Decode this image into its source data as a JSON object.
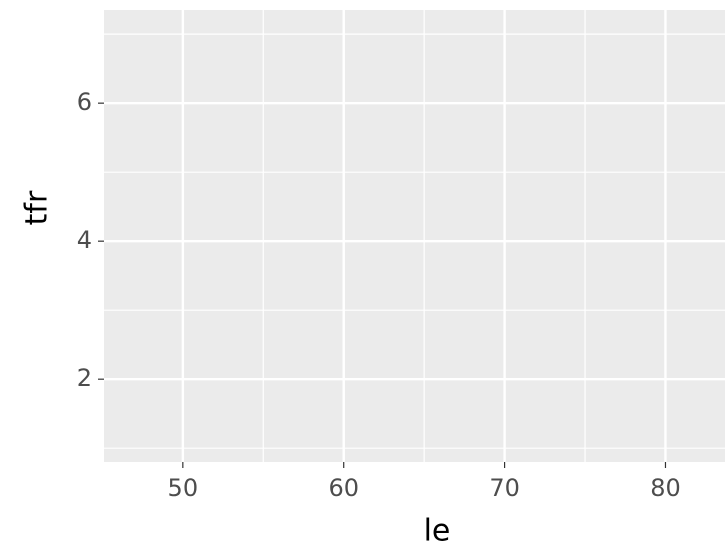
{
  "chart_data": {
    "type": "scatter",
    "xlabel": "le",
    "ylabel": "tfr",
    "xlim": [
      45.1,
      83.7
    ],
    "ylim": [
      0.8,
      7.35
    ],
    "xticks": [
      50,
      60,
      70,
      80
    ],
    "yticks": [
      2,
      4,
      6
    ],
    "x_minor_grid": [
      55,
      65,
      75
    ],
    "y_minor_grid": [
      1,
      3,
      5,
      7
    ],
    "grid": true
  }
}
